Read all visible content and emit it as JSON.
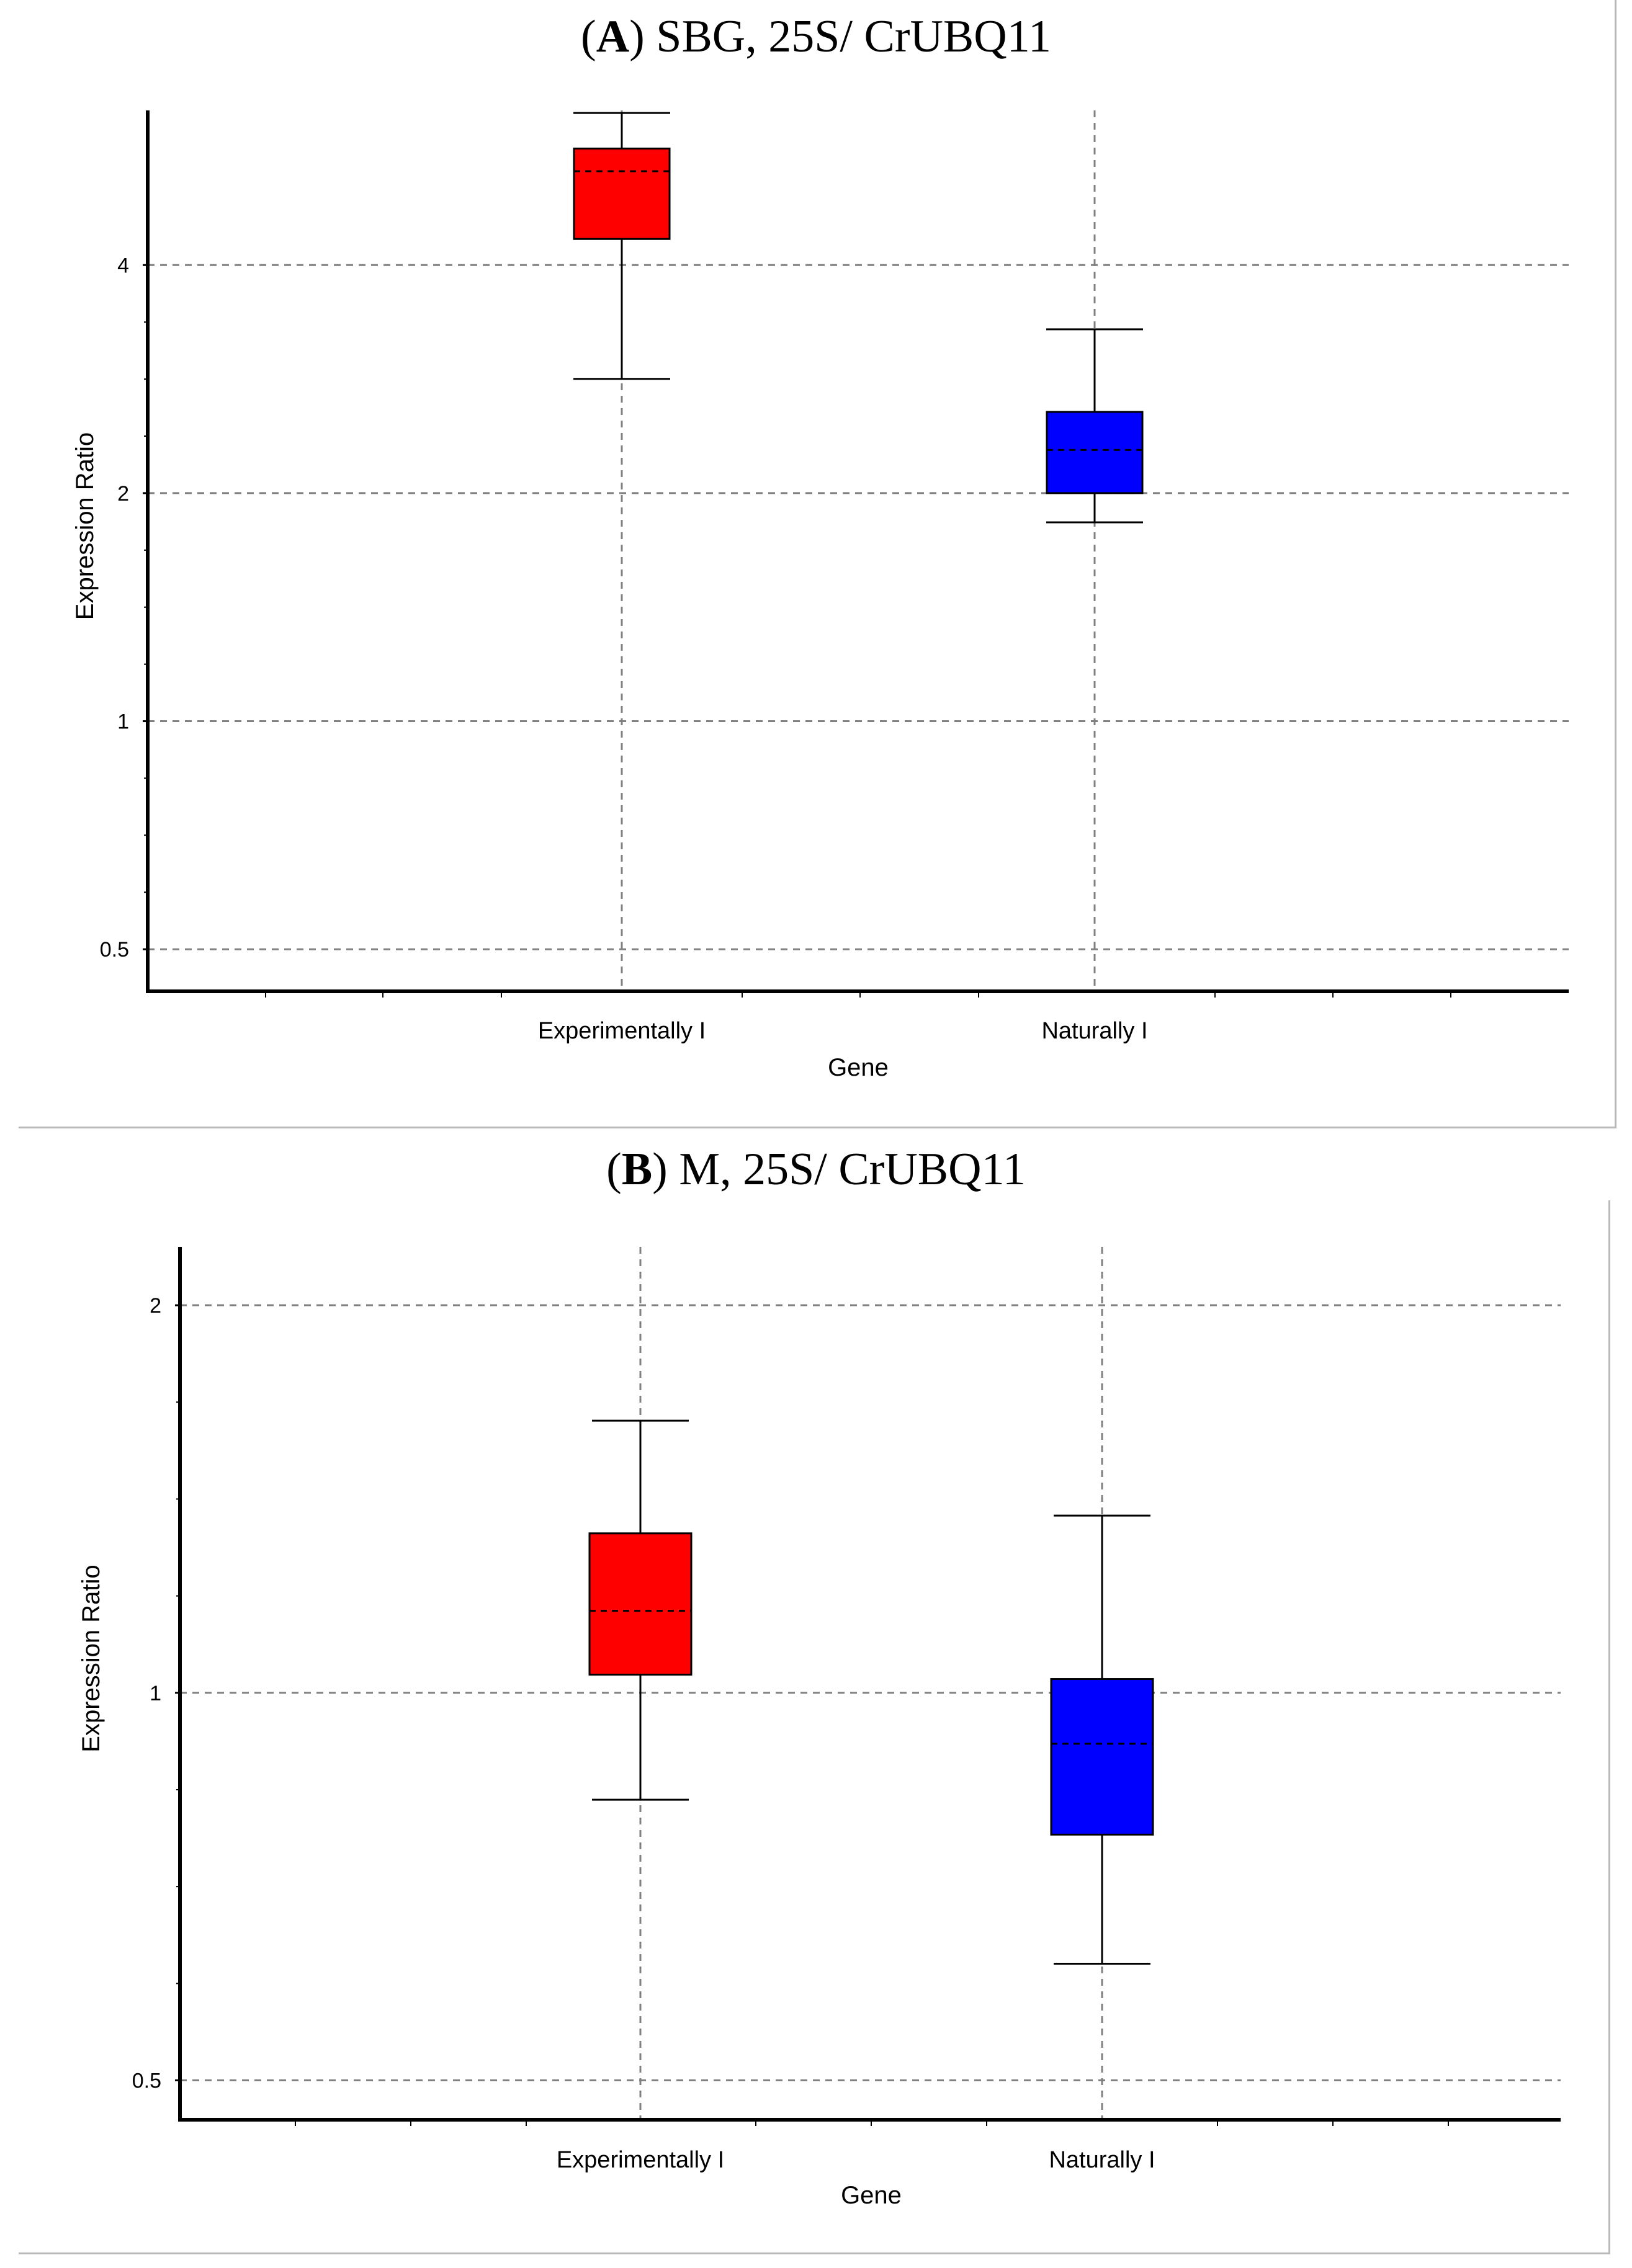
{
  "chart_data": [
    {
      "type": "boxplot",
      "title_letter": "A",
      "title_rest": "SBG, 25S/ CrUBQ11",
      "xlabel": "Gene",
      "ylabel": "Expression Ratio",
      "yscale": "log2",
      "ylim": [
        0.44,
        6.4
      ],
      "yticks": [
        {
          "v": 0.5,
          "label": "0.5"
        },
        {
          "v": 1,
          "label": "1"
        },
        {
          "v": 2,
          "label": "2"
        },
        {
          "v": 4,
          "label": "4"
        }
      ],
      "grid": true,
      "categories": [
        "Experimentally I",
        "Naturally I"
      ],
      "series": [
        {
          "name": "Experimentally I",
          "color": "#ff0000",
          "whisker_low": 2.83,
          "q1": 4.33,
          "median": 5.32,
          "q3": 5.7,
          "whisker_high": 6.35
        },
        {
          "name": "Naturally I",
          "color": "#0000ff",
          "whisker_low": 1.83,
          "q1": 2.0,
          "median": 2.28,
          "q3": 2.56,
          "whisker_high": 3.29
        }
      ]
    },
    {
      "type": "boxplot",
      "title_letter": "B",
      "title_rest": "M, 25S/ CrUBQ11",
      "xlabel": "Gene",
      "ylabel": "Expression Ratio",
      "yscale": "log2",
      "ylim": [
        0.466,
        2.22
      ],
      "yticks": [
        {
          "v": 0.5,
          "label": "0.5"
        },
        {
          "v": 1,
          "label": "1"
        },
        {
          "v": 2,
          "label": "2"
        }
      ],
      "grid": true,
      "categories": [
        "Experimentally I",
        "Naturally I"
      ],
      "series": [
        {
          "name": "Experimentally I",
          "color": "#ff0000",
          "whisker_low": 0.826,
          "q1": 1.033,
          "median": 1.158,
          "q3": 1.33,
          "whisker_high": 1.627
        },
        {
          "name": "Naturally I",
          "color": "#0000ff",
          "whisker_low": 0.616,
          "q1": 0.776,
          "median": 0.913,
          "q3": 1.025,
          "whisker_high": 1.373
        }
      ]
    }
  ]
}
